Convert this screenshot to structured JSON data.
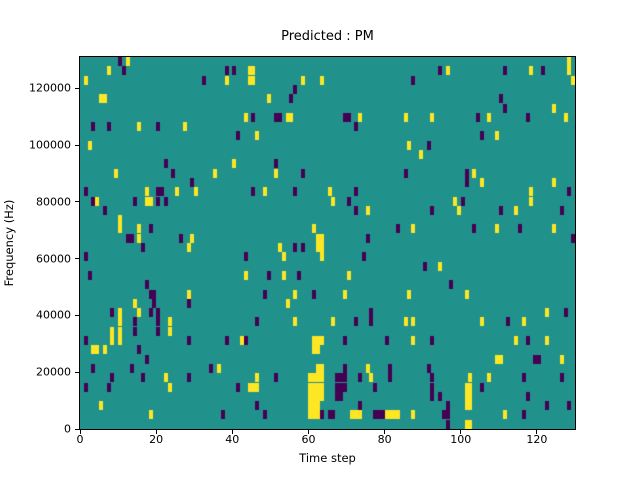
{
  "chart_data": {
    "type": "heatmap",
    "title": "Predicted : PM",
    "xlabel": "Time step",
    "ylabel": "Frequency (Hz)",
    "xlim": [
      0,
      130
    ],
    "ylim": [
      0,
      131072
    ],
    "xticks": [
      0,
      20,
      40,
      60,
      80,
      100,
      120
    ],
    "yticks": [
      0,
      20000,
      40000,
      60000,
      80000,
      100000,
      120000
    ],
    "legend_position": "none",
    "grid_lines": false,
    "grid": {
      "cols": 130,
      "rows": 40
    },
    "colormap": {
      "name": "viridis",
      "low": "#440154",
      "mid": "#21918c",
      "high": "#fde725"
    },
    "background_value": 1,
    "cell_values_legend": {
      "0": "low (purple)",
      "1": "mid / background (teal)",
      "2": "high (yellow)"
    },
    "cells": [
      [
        10,
        0,
        0
      ],
      [
        12,
        0,
        2
      ],
      [
        128,
        0,
        2
      ],
      [
        7,
        1,
        2
      ],
      [
        11,
        1,
        0
      ],
      [
        38,
        1,
        0
      ],
      [
        40,
        1,
        0
      ],
      [
        44,
        1,
        2
      ],
      [
        45,
        1,
        2
      ],
      [
        94,
        1,
        0
      ],
      [
        96,
        1,
        2
      ],
      [
        111,
        1,
        0
      ],
      [
        118,
        1,
        2
      ],
      [
        121,
        1,
        0
      ],
      [
        128,
        1,
        2
      ],
      [
        1,
        2,
        2
      ],
      [
        32,
        2,
        0
      ],
      [
        38,
        2,
        2
      ],
      [
        44,
        2,
        2
      ],
      [
        45,
        2,
        2
      ],
      [
        58,
        2,
        2
      ],
      [
        63,
        2,
        2
      ],
      [
        87,
        2,
        0
      ],
      [
        129,
        2,
        2
      ],
      [
        56,
        3,
        0
      ],
      [
        5,
        4,
        2
      ],
      [
        6,
        4,
        2
      ],
      [
        49,
        4,
        2
      ],
      [
        55,
        4,
        0
      ],
      [
        110,
        4,
        0
      ],
      [
        111,
        5,
        0
      ],
      [
        124,
        5,
        2
      ],
      [
        43,
        6,
        2
      ],
      [
        45,
        6,
        0
      ],
      [
        51,
        6,
        0
      ],
      [
        52,
        6,
        0
      ],
      [
        54,
        6,
        2
      ],
      [
        55,
        6,
        2
      ],
      [
        69,
        6,
        0
      ],
      [
        70,
        6,
        0
      ],
      [
        73,
        6,
        2
      ],
      [
        85,
        6,
        2
      ],
      [
        92,
        6,
        2
      ],
      [
        104,
        6,
        0
      ],
      [
        107,
        6,
        2
      ],
      [
        117,
        6,
        0
      ],
      [
        127,
        6,
        2
      ],
      [
        3,
        7,
        0
      ],
      [
        7,
        7,
        0
      ],
      [
        15,
        7,
        2
      ],
      [
        20,
        7,
        0
      ],
      [
        27,
        7,
        2
      ],
      [
        72,
        7,
        0
      ],
      [
        41,
        8,
        0
      ],
      [
        46,
        8,
        2
      ],
      [
        105,
        8,
        0
      ],
      [
        109,
        8,
        2
      ],
      [
        2,
        9,
        2
      ],
      [
        86,
        9,
        2
      ],
      [
        91,
        9,
        0
      ],
      [
        89,
        10,
        2
      ],
      [
        22,
        11,
        0
      ],
      [
        40,
        11,
        2
      ],
      [
        51,
        11,
        0
      ],
      [
        9,
        12,
        2
      ],
      [
        24,
        12,
        0
      ],
      [
        35,
        12,
        2
      ],
      [
        51,
        12,
        2
      ],
      [
        58,
        12,
        0
      ],
      [
        85,
        12,
        0
      ],
      [
        101,
        12,
        0
      ],
      [
        103,
        12,
        2
      ],
      [
        29,
        13,
        0
      ],
      [
        101,
        13,
        0
      ],
      [
        105,
        13,
        2
      ],
      [
        124,
        13,
        2
      ],
      [
        1,
        14,
        0
      ],
      [
        17,
        14,
        2
      ],
      [
        20,
        14,
        0
      ],
      [
        21,
        14,
        0
      ],
      [
        25,
        14,
        2
      ],
      [
        30,
        14,
        2
      ],
      [
        45,
        14,
        0
      ],
      [
        48,
        14,
        2
      ],
      [
        56,
        14,
        0
      ],
      [
        65,
        14,
        2
      ],
      [
        72,
        14,
        0
      ],
      [
        118,
        14,
        2
      ],
      [
        128,
        14,
        0
      ],
      [
        3,
        15,
        0
      ],
      [
        4,
        15,
        2
      ],
      [
        14,
        15,
        0
      ],
      [
        17,
        15,
        2
      ],
      [
        18,
        15,
        2
      ],
      [
        20,
        15,
        0
      ],
      [
        22,
        15,
        0
      ],
      [
        66,
        15,
        2
      ],
      [
        70,
        15,
        0
      ],
      [
        98,
        15,
        2
      ],
      [
        100,
        15,
        0
      ],
      [
        118,
        15,
        2
      ],
      [
        6,
        16,
        0
      ],
      [
        72,
        16,
        0
      ],
      [
        75,
        16,
        2
      ],
      [
        92,
        16,
        0
      ],
      [
        99,
        16,
        2
      ],
      [
        110,
        16,
        0
      ],
      [
        114,
        16,
        2
      ],
      [
        126,
        16,
        0
      ],
      [
        10,
        17,
        2
      ],
      [
        10,
        18,
        2
      ],
      [
        15,
        18,
        2
      ],
      [
        18,
        18,
        0
      ],
      [
        61,
        18,
        2
      ],
      [
        83,
        18,
        0
      ],
      [
        87,
        18,
        2
      ],
      [
        103,
        18,
        0
      ],
      [
        109,
        18,
        2
      ],
      [
        115,
        18,
        0
      ],
      [
        124,
        18,
        2
      ],
      [
        12,
        19,
        0
      ],
      [
        13,
        19,
        0
      ],
      [
        15,
        19,
        2
      ],
      [
        26,
        19,
        0
      ],
      [
        29,
        19,
        2
      ],
      [
        62,
        19,
        2
      ],
      [
        63,
        19,
        2
      ],
      [
        75,
        19,
        0
      ],
      [
        129,
        19,
        0
      ],
      [
        16,
        20,
        0
      ],
      [
        28,
        20,
        2
      ],
      [
        52,
        20,
        2
      ],
      [
        56,
        20,
        0
      ],
      [
        58,
        20,
        0
      ],
      [
        62,
        20,
        2
      ],
      [
        63,
        20,
        2
      ],
      [
        1,
        21,
        0
      ],
      [
        43,
        21,
        0
      ],
      [
        53,
        21,
        2
      ],
      [
        63,
        21,
        2
      ],
      [
        74,
        21,
        0
      ],
      [
        90,
        22,
        0
      ],
      [
        94,
        22,
        2
      ],
      [
        2,
        23,
        0
      ],
      [
        43,
        23,
        2
      ],
      [
        49,
        23,
        0
      ],
      [
        53,
        23,
        2
      ],
      [
        57,
        23,
        0
      ],
      [
        70,
        23,
        2
      ],
      [
        17,
        24,
        0
      ],
      [
        97,
        24,
        0
      ],
      [
        18,
        25,
        0
      ],
      [
        19,
        25,
        0
      ],
      [
        28,
        25,
        2
      ],
      [
        48,
        25,
        0
      ],
      [
        56,
        25,
        2
      ],
      [
        61,
        25,
        0
      ],
      [
        69,
        25,
        2
      ],
      [
        86,
        25,
        2
      ],
      [
        101,
        25,
        2
      ],
      [
        14,
        26,
        2
      ],
      [
        19,
        26,
        0
      ],
      [
        28,
        26,
        0
      ],
      [
        54,
        26,
        2
      ],
      [
        8,
        27,
        0
      ],
      [
        10,
        27,
        2
      ],
      [
        15,
        27,
        2
      ],
      [
        18,
        27,
        0
      ],
      [
        20,
        27,
        0
      ],
      [
        76,
        27,
        0
      ],
      [
        122,
        27,
        2
      ],
      [
        127,
        27,
        0
      ],
      [
        10,
        28,
        2
      ],
      [
        14,
        28,
        0
      ],
      [
        20,
        28,
        0
      ],
      [
        23,
        28,
        2
      ],
      [
        46,
        28,
        0
      ],
      [
        56,
        28,
        2
      ],
      [
        66,
        28,
        2
      ],
      [
        72,
        28,
        0
      ],
      [
        76,
        28,
        0
      ],
      [
        85,
        28,
        2
      ],
      [
        87,
        28,
        2
      ],
      [
        105,
        28,
        2
      ],
      [
        112,
        28,
        0
      ],
      [
        116,
        28,
        2
      ],
      [
        8,
        29,
        2
      ],
      [
        10,
        29,
        2
      ],
      [
        14,
        29,
        0
      ],
      [
        20,
        29,
        0
      ],
      [
        23,
        29,
        2
      ],
      [
        1,
        30,
        0
      ],
      [
        8,
        30,
        2
      ],
      [
        10,
        30,
        2
      ],
      [
        28,
        30,
        0
      ],
      [
        38,
        30,
        0
      ],
      [
        42,
        30,
        2
      ],
      [
        43,
        30,
        0
      ],
      [
        61,
        30,
        2
      ],
      [
        62,
        30,
        2
      ],
      [
        63,
        30,
        2
      ],
      [
        69,
        30,
        0
      ],
      [
        80,
        30,
        0
      ],
      [
        87,
        30,
        2
      ],
      [
        92,
        30,
        0
      ],
      [
        114,
        30,
        2
      ],
      [
        117,
        30,
        0
      ],
      [
        122,
        30,
        2
      ],
      [
        3,
        31,
        2
      ],
      [
        4,
        31,
        2
      ],
      [
        6,
        31,
        2
      ],
      [
        15,
        31,
        0
      ],
      [
        61,
        31,
        2
      ],
      [
        62,
        31,
        2
      ],
      [
        17,
        32,
        0
      ],
      [
        109,
        32,
        2
      ],
      [
        110,
        32,
        2
      ],
      [
        119,
        32,
        0
      ],
      [
        120,
        32,
        0
      ],
      [
        126,
        32,
        2
      ],
      [
        3,
        33,
        0
      ],
      [
        13,
        33,
        0
      ],
      [
        34,
        33,
        0
      ],
      [
        36,
        33,
        2
      ],
      [
        62,
        33,
        2
      ],
      [
        63,
        33,
        2
      ],
      [
        69,
        33,
        0
      ],
      [
        75,
        33,
        2
      ],
      [
        81,
        33,
        0
      ],
      [
        91,
        33,
        0
      ],
      [
        8,
        34,
        0
      ],
      [
        16,
        34,
        0
      ],
      [
        22,
        34,
        2
      ],
      [
        28,
        34,
        0
      ],
      [
        46,
        34,
        2
      ],
      [
        51,
        34,
        0
      ],
      [
        60,
        34,
        2
      ],
      [
        61,
        34,
        2
      ],
      [
        62,
        34,
        2
      ],
      [
        63,
        34,
        2
      ],
      [
        67,
        34,
        0
      ],
      [
        68,
        34,
        0
      ],
      [
        69,
        34,
        0
      ],
      [
        73,
        34,
        0
      ],
      [
        76,
        34,
        2
      ],
      [
        81,
        34,
        0
      ],
      [
        92,
        34,
        0
      ],
      [
        102,
        34,
        2
      ],
      [
        107,
        34,
        2
      ],
      [
        116,
        34,
        0
      ],
      [
        126,
        34,
        0
      ],
      [
        1,
        35,
        0
      ],
      [
        7,
        35,
        0
      ],
      [
        23,
        35,
        2
      ],
      [
        41,
        35,
        0
      ],
      [
        44,
        35,
        2
      ],
      [
        45,
        35,
        2
      ],
      [
        46,
        35,
        2
      ],
      [
        60,
        35,
        2
      ],
      [
        61,
        35,
        2
      ],
      [
        62,
        35,
        2
      ],
      [
        63,
        35,
        2
      ],
      [
        67,
        35,
        0
      ],
      [
        68,
        35,
        0
      ],
      [
        69,
        35,
        0
      ],
      [
        77,
        35,
        0
      ],
      [
        92,
        35,
        0
      ],
      [
        101,
        35,
        2
      ],
      [
        102,
        35,
        2
      ],
      [
        105,
        35,
        0
      ],
      [
        60,
        36,
        2
      ],
      [
        61,
        36,
        2
      ],
      [
        62,
        36,
        2
      ],
      [
        63,
        36,
        2
      ],
      [
        67,
        36,
        0
      ],
      [
        68,
        36,
        0
      ],
      [
        92,
        36,
        0
      ],
      [
        94,
        36,
        0
      ],
      [
        101,
        36,
        2
      ],
      [
        102,
        36,
        2
      ],
      [
        117,
        36,
        0
      ],
      [
        5,
        37,
        2
      ],
      [
        46,
        37,
        0
      ],
      [
        60,
        37,
        2
      ],
      [
        61,
        37,
        2
      ],
      [
        62,
        37,
        2
      ],
      [
        73,
        37,
        0
      ],
      [
        96,
        37,
        0
      ],
      [
        101,
        37,
        2
      ],
      [
        102,
        37,
        2
      ],
      [
        122,
        37,
        0
      ],
      [
        128,
        37,
        0
      ],
      [
        18,
        38,
        2
      ],
      [
        37,
        38,
        0
      ],
      [
        48,
        38,
        0
      ],
      [
        60,
        38,
        2
      ],
      [
        61,
        38,
        2
      ],
      [
        62,
        38,
        2
      ],
      [
        63,
        38,
        0
      ],
      [
        65,
        38,
        0
      ],
      [
        66,
        38,
        0
      ],
      [
        71,
        38,
        2
      ],
      [
        72,
        38,
        2
      ],
      [
        73,
        38,
        2
      ],
      [
        77,
        38,
        0
      ],
      [
        78,
        38,
        0
      ],
      [
        79,
        38,
        0
      ],
      [
        80,
        38,
        2
      ],
      [
        81,
        38,
        2
      ],
      [
        82,
        38,
        2
      ],
      [
        83,
        38,
        2
      ],
      [
        87,
        38,
        2
      ],
      [
        95,
        38,
        0
      ],
      [
        96,
        38,
        0
      ],
      [
        111,
        38,
        2
      ],
      [
        116,
        38,
        0
      ],
      [
        96,
        39,
        0
      ],
      [
        101,
        39,
        2
      ],
      [
        102,
        39,
        2
      ]
    ]
  }
}
